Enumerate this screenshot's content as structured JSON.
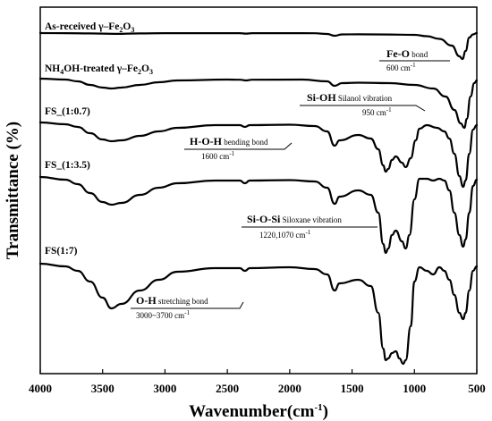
{
  "chart_data": {
    "type": "line",
    "xlabel": "Wavenumber(cm",
    "xlabel_sup": "-1",
    "xlabel_close": ")",
    "ylabel": "Transmittance (%)",
    "xlim": [
      4000,
      500
    ],
    "x_ticks": [
      "4000",
      "3500",
      "3000",
      "2500",
      "2000",
      "1500",
      "1000",
      "500"
    ],
    "x_tick_values": [
      4000,
      3500,
      3000,
      2500,
      2000,
      1500,
      1000,
      500
    ],
    "series": [
      {
        "name": "As-received γ-Fe2O3",
        "label_parts": [
          "As-received γ–Fe",
          "2",
          "O",
          "3"
        ],
        "points": [
          [
            4000,
            0.0
          ],
          [
            3800,
            0.1
          ],
          [
            3600,
            0.4
          ],
          [
            3400,
            0.9
          ],
          [
            3200,
            0.4
          ],
          [
            3000,
            0.1
          ],
          [
            2400,
            0.15
          ],
          [
            2350,
            0.6
          ],
          [
            2300,
            0.15
          ],
          [
            2000,
            0.1
          ],
          [
            1800,
            0.2
          ],
          [
            1700,
            1.0
          ],
          [
            1640,
            3.0
          ],
          [
            1580,
            1.5
          ],
          [
            1450,
            1.4
          ],
          [
            1200,
            1.6
          ],
          [
            1000,
            2.0
          ],
          [
            900,
            3.5
          ],
          [
            800,
            6.5
          ],
          [
            700,
            14.0
          ],
          [
            640,
            26.0
          ],
          [
            615,
            29.0
          ],
          [
            590,
            20.0
          ],
          [
            560,
            5.0
          ],
          [
            530,
            1.5
          ],
          [
            500,
            0.0
          ]
        ]
      },
      {
        "name": "NH4OH-treated γ-Fe2O3",
        "label_parts": [
          "NH",
          "4",
          "OH-treated γ–Fe",
          "2",
          "O",
          "3"
        ],
        "points": [
          [
            4000,
            0.0
          ],
          [
            3800,
            1.0
          ],
          [
            3700,
            3.0
          ],
          [
            3600,
            7.0
          ],
          [
            3500,
            10.0
          ],
          [
            3430,
            11.0
          ],
          [
            3350,
            10.0
          ],
          [
            3200,
            7.0
          ],
          [
            3050,
            4.0
          ],
          [
            2900,
            2.0
          ],
          [
            2500,
            1.0
          ],
          [
            2400,
            1.2
          ],
          [
            2350,
            2.0
          ],
          [
            2300,
            1.2
          ],
          [
            1900,
            1.0
          ],
          [
            1700,
            3.0
          ],
          [
            1640,
            8.0
          ],
          [
            1580,
            5.0
          ],
          [
            1450,
            4.5
          ],
          [
            1200,
            5.0
          ],
          [
            1000,
            7.0
          ],
          [
            850,
            11.0
          ],
          [
            750,
            20.0
          ],
          [
            680,
            35.0
          ],
          [
            630,
            50.0
          ],
          [
            600,
            55.0
          ],
          [
            580,
            45.0
          ],
          [
            550,
            20.0
          ],
          [
            520,
            5.0
          ],
          [
            500,
            2.0
          ]
        ]
      },
      {
        "name": "FS_(1:0.7)",
        "label_parts": [
          "FS_(1:0.7)"
        ],
        "points": [
          [
            4000,
            0.0
          ],
          [
            3800,
            2.0
          ],
          [
            3700,
            5.0
          ],
          [
            3600,
            12.0
          ],
          [
            3500,
            19.0
          ],
          [
            3430,
            21.0
          ],
          [
            3350,
            20.0
          ],
          [
            3200,
            15.0
          ],
          [
            3050,
            10.0
          ],
          [
            2900,
            6.0
          ],
          [
            2600,
            3.0
          ],
          [
            2400,
            3.0
          ],
          [
            2360,
            5.0
          ],
          [
            2320,
            3.0
          ],
          [
            2000,
            2.5
          ],
          [
            1800,
            4.0
          ],
          [
            1700,
            10.0
          ],
          [
            1640,
            26.0
          ],
          [
            1600,
            20.0
          ],
          [
            1450,
            14.0
          ],
          [
            1350,
            18.0
          ],
          [
            1290,
            30.0
          ],
          [
            1250,
            48.0
          ],
          [
            1230,
            55.0
          ],
          [
            1210,
            52.0
          ],
          [
            1180,
            42.0
          ],
          [
            1150,
            38.0
          ],
          [
            1100,
            45.0
          ],
          [
            1070,
            50.0
          ],
          [
            1030,
            40.0
          ],
          [
            990,
            20.0
          ],
          [
            960,
            7.0
          ],
          [
            900,
            3.0
          ],
          [
            820,
            6.0
          ],
          [
            760,
            10.0
          ],
          [
            720,
            18.0
          ],
          [
            680,
            35.0
          ],
          [
            640,
            60.0
          ],
          [
            610,
            72.0
          ],
          [
            590,
            65.0
          ],
          [
            560,
            35.0
          ],
          [
            530,
            8.0
          ],
          [
            500,
            3.0
          ]
        ]
      },
      {
        "name": "FS_(1:3.5)",
        "label_parts": [
          "FS_(1:3.5)"
        ],
        "points": [
          [
            4000,
            0.0
          ],
          [
            3800,
            3.0
          ],
          [
            3700,
            8.0
          ],
          [
            3600,
            18.0
          ],
          [
            3500,
            28.0
          ],
          [
            3430,
            31.0
          ],
          [
            3350,
            29.0
          ],
          [
            3200,
            20.0
          ],
          [
            3050,
            12.0
          ],
          [
            2900,
            7.0
          ],
          [
            2600,
            4.0
          ],
          [
            2400,
            4.0
          ],
          [
            2360,
            7.0
          ],
          [
            2320,
            4.0
          ],
          [
            2000,
            3.5
          ],
          [
            1800,
            5.0
          ],
          [
            1700,
            12.0
          ],
          [
            1640,
            30.0
          ],
          [
            1600,
            22.0
          ],
          [
            1450,
            15.0
          ],
          [
            1350,
            20.0
          ],
          [
            1290,
            40.0
          ],
          [
            1250,
            75.0
          ],
          [
            1230,
            85.0
          ],
          [
            1210,
            80.0
          ],
          [
            1180,
            65.0
          ],
          [
            1150,
            60.0
          ],
          [
            1100,
            72.0
          ],
          [
            1070,
            80.0
          ],
          [
            1040,
            65.0
          ],
          [
            1000,
            25.0
          ],
          [
            960,
            2.0
          ],
          [
            900,
            2.0
          ],
          [
            850,
            4.0
          ],
          [
            800,
            2.0
          ],
          [
            760,
            4.0
          ],
          [
            720,
            15.0
          ],
          [
            680,
            40.0
          ],
          [
            640,
            65.0
          ],
          [
            610,
            78.0
          ],
          [
            590,
            70.0
          ],
          [
            560,
            40.0
          ],
          [
            530,
            10.0
          ],
          [
            500,
            3.0
          ]
        ]
      },
      {
        "name": "FS(1:7)",
        "label_parts": [
          "FS(1:7)"
        ],
        "points": [
          [
            4000,
            0.0
          ],
          [
            3800,
            3.0
          ],
          [
            3700,
            8.0
          ],
          [
            3600,
            20.0
          ],
          [
            3500,
            38.0
          ],
          [
            3430,
            50.0
          ],
          [
            3350,
            45.0
          ],
          [
            3200,
            30.0
          ],
          [
            3050,
            18.0
          ],
          [
            2900,
            9.0
          ],
          [
            2600,
            5.0
          ],
          [
            2400,
            5.0
          ],
          [
            2360,
            8.0
          ],
          [
            2320,
            5.0
          ],
          [
            2000,
            4.0
          ],
          [
            1800,
            6.0
          ],
          [
            1700,
            12.0
          ],
          [
            1640,
            30.0
          ],
          [
            1600,
            22.0
          ],
          [
            1450,
            18.0
          ],
          [
            1350,
            25.0
          ],
          [
            1290,
            55.0
          ],
          [
            1250,
            95.0
          ],
          [
            1230,
            108.0
          ],
          [
            1210,
            106.0
          ],
          [
            1180,
            100.0
          ],
          [
            1150,
            98.0
          ],
          [
            1120,
            106.0
          ],
          [
            1090,
            112.0
          ],
          [
            1070,
            108.0
          ],
          [
            1030,
            70.0
          ],
          [
            1000,
            20.0
          ],
          [
            960,
            4.0
          ],
          [
            900,
            8.0
          ],
          [
            850,
            12.0
          ],
          [
            800,
            4.0
          ],
          [
            760,
            8.0
          ],
          [
            720,
            18.0
          ],
          [
            680,
            35.0
          ],
          [
            640,
            55.0
          ],
          [
            610,
            62.0
          ],
          [
            590,
            55.0
          ],
          [
            560,
            30.0
          ],
          [
            530,
            8.0
          ],
          [
            500,
            3.0
          ]
        ]
      }
    ],
    "annotations": [
      {
        "title": "Fe-O",
        "desc": " bond",
        "value": "600 cm",
        "sup": "-1"
      },
      {
        "title": "Si-OH",
        "desc": " Silanol vibration",
        "value": "950 cm",
        "sup": "-1"
      },
      {
        "title": "H-O-H",
        "desc": " bending bond",
        "value": "1600 cm",
        "sup": "-1"
      },
      {
        "title": "Si-O-Si",
        "desc": " Siloxane vibration",
        "value": "1220,1070 cm",
        "sup": "-1"
      },
      {
        "title": "O-H",
        "desc": " stretching bond",
        "value": "3000~3700 cm",
        "sup": "-1"
      }
    ]
  }
}
